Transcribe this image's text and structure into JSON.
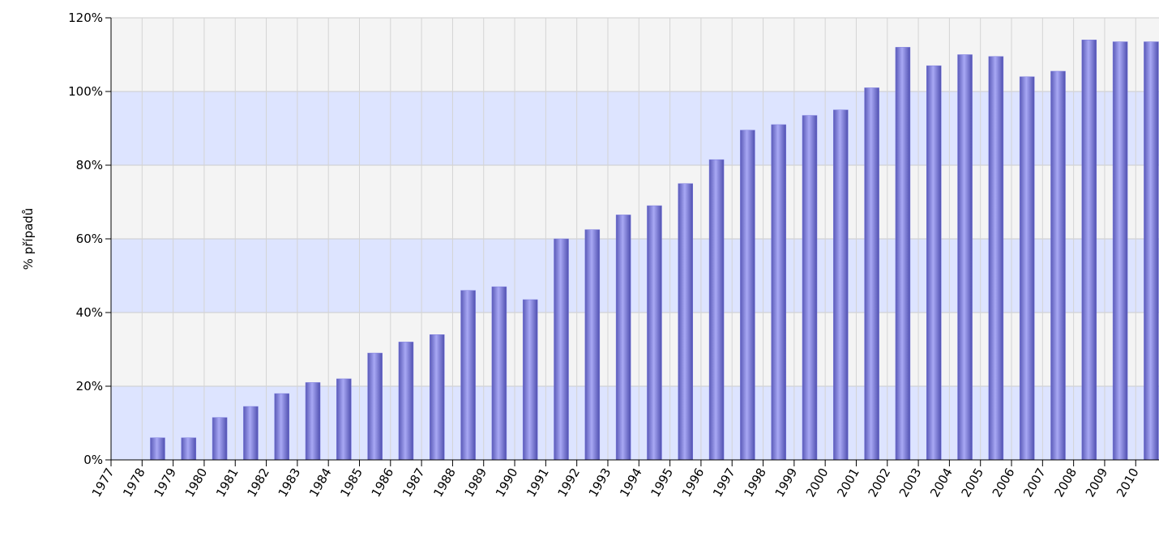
{
  "chart_data": {
    "type": "bar",
    "y_label": "% případů",
    "x": [
      1978,
      1979,
      1980,
      1981,
      1982,
      1983,
      1984,
      1985,
      1986,
      1987,
      1988,
      1989,
      1990,
      1991,
      1992,
      1993,
      1994,
      1995,
      1996,
      1997,
      1998,
      1999,
      2000,
      2001,
      2002,
      2003,
      2004,
      2005,
      2006,
      2007,
      2008,
      2009,
      2010
    ],
    "values": [
      6,
      6,
      11.5,
      14.5,
      18,
      21,
      22,
      29,
      32,
      34,
      46,
      47,
      43.5,
      60,
      62.5,
      66.5,
      69,
      75,
      81.5,
      89.5,
      91,
      93.5,
      95,
      101,
      112,
      107,
      110,
      109.5,
      104,
      105.5,
      114,
      113.5,
      113.5
    ],
    "color": "#7777dd",
    "xlim": [
      1977,
      2010.75
    ],
    "xticks": [
      1977,
      1978,
      1979,
      1980,
      1981,
      1982,
      1983,
      1984,
      1985,
      1986,
      1987,
      1988,
      1989,
      1990,
      1991,
      1992,
      1993,
      1994,
      1995,
      1996,
      1997,
      1998,
      1999,
      2000,
      2001,
      2002,
      2003,
      2004,
      2005,
      2006,
      2007,
      2008,
      2009,
      2010
    ],
    "ylim": [
      0,
      120
    ],
    "yticks": [
      {
        "value": 0,
        "label": "0%"
      },
      {
        "value": 20,
        "label": "20%"
      },
      {
        "value": 40,
        "label": "40%"
      },
      {
        "value": 60,
        "label": "60%"
      },
      {
        "value": 80,
        "label": "80%"
      },
      {
        "value": 100,
        "label": "100%"
      },
      {
        "value": 120,
        "label": "120%"
      }
    ],
    "grid": true
  }
}
